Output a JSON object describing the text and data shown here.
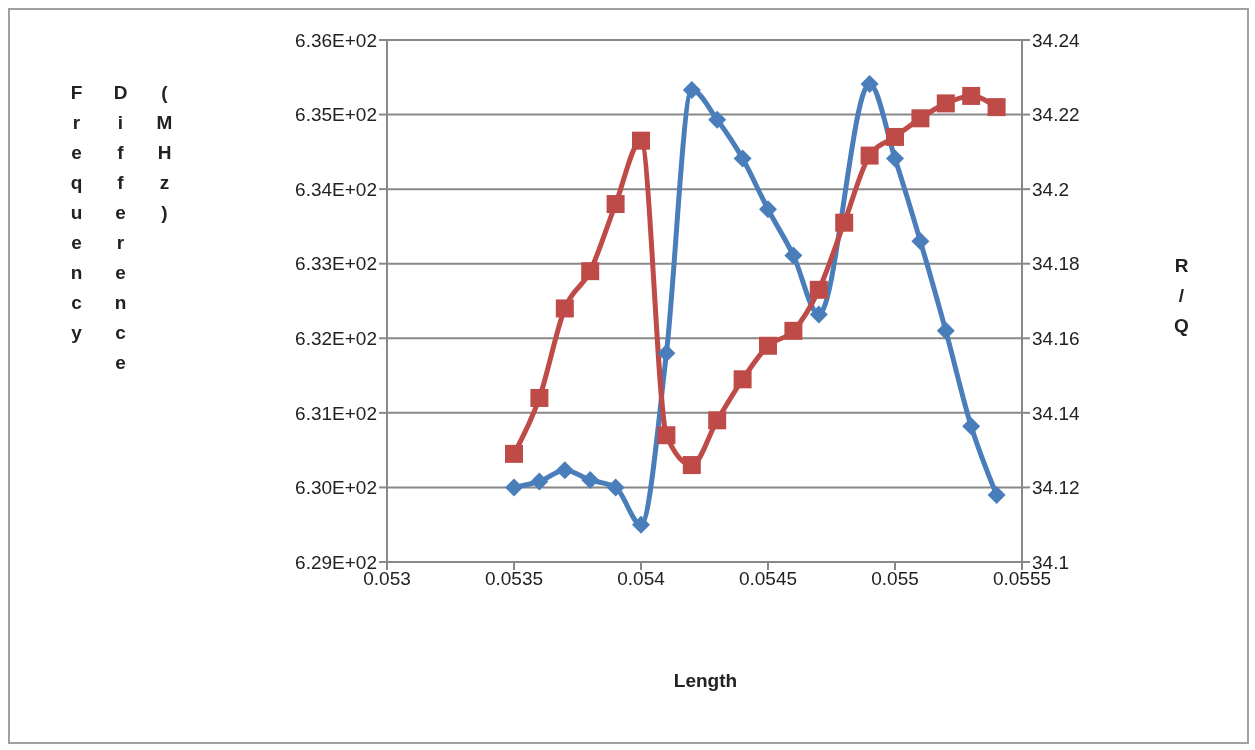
{
  "chart_data": {
    "type": "line",
    "xlabel": "Length",
    "ylabel": "Frequency Difference (MHz)",
    "y2label": "R/Q",
    "x": [
      0.0535,
      0.0536,
      0.0537,
      0.0538,
      0.0539,
      0.054,
      0.0541,
      0.0542,
      0.0543,
      0.0544,
      0.0545,
      0.0546,
      0.0547,
      0.0548,
      0.0549,
      0.055,
      0.0551,
      0.0552,
      0.0553,
      0.0554
    ],
    "series": [
      {
        "color": "#4a7ebb",
        "marker": "diamond",
        "values": [
          630.0,
          630.08,
          630.23,
          630.1,
          630.0,
          629.5,
          631.8,
          635.33,
          634.93,
          634.41,
          633.73,
          633.11,
          632.32,
          null,
          635.41,
          634.41,
          633.3,
          632.1,
          630.82,
          629.9
        ]
      },
      {
        "color": "#be4b48",
        "marker": "square",
        "axis": "y2",
        "values": [
          34.129,
          34.144,
          34.168,
          34.178,
          34.196,
          34.213,
          34.134,
          34.126,
          34.138,
          34.149,
          34.158,
          34.162,
          34.173,
          34.191,
          34.209,
          34.214,
          34.219,
          34.223,
          34.225,
          34.222
        ]
      }
    ],
    "xlim": [
      0.053,
      0.0555
    ],
    "xticks": [
      0.053,
      0.0535,
      0.054,
      0.0545,
      0.055,
      0.0555
    ],
    "ylim": [
      629,
      636
    ],
    "yticks": [
      {
        "value": 629,
        "label": "6.29E+02"
      },
      {
        "value": 630,
        "label": "6.30E+02"
      },
      {
        "value": 631,
        "label": "6.31E+02"
      },
      {
        "value": 632,
        "label": "6.32E+02"
      },
      {
        "value": 633,
        "label": "6.33E+02"
      },
      {
        "value": 634,
        "label": "6.34E+02"
      },
      {
        "value": 635,
        "label": "6.35E+02"
      },
      {
        "value": 636,
        "label": "6.36E+02"
      }
    ],
    "y2lim": [
      34.1,
      34.24
    ],
    "y2ticks": [
      34.1,
      34.12,
      34.14,
      34.16,
      34.18,
      34.2,
      34.22,
      34.24
    ],
    "grid": "y",
    "line_style": "solid"
  }
}
